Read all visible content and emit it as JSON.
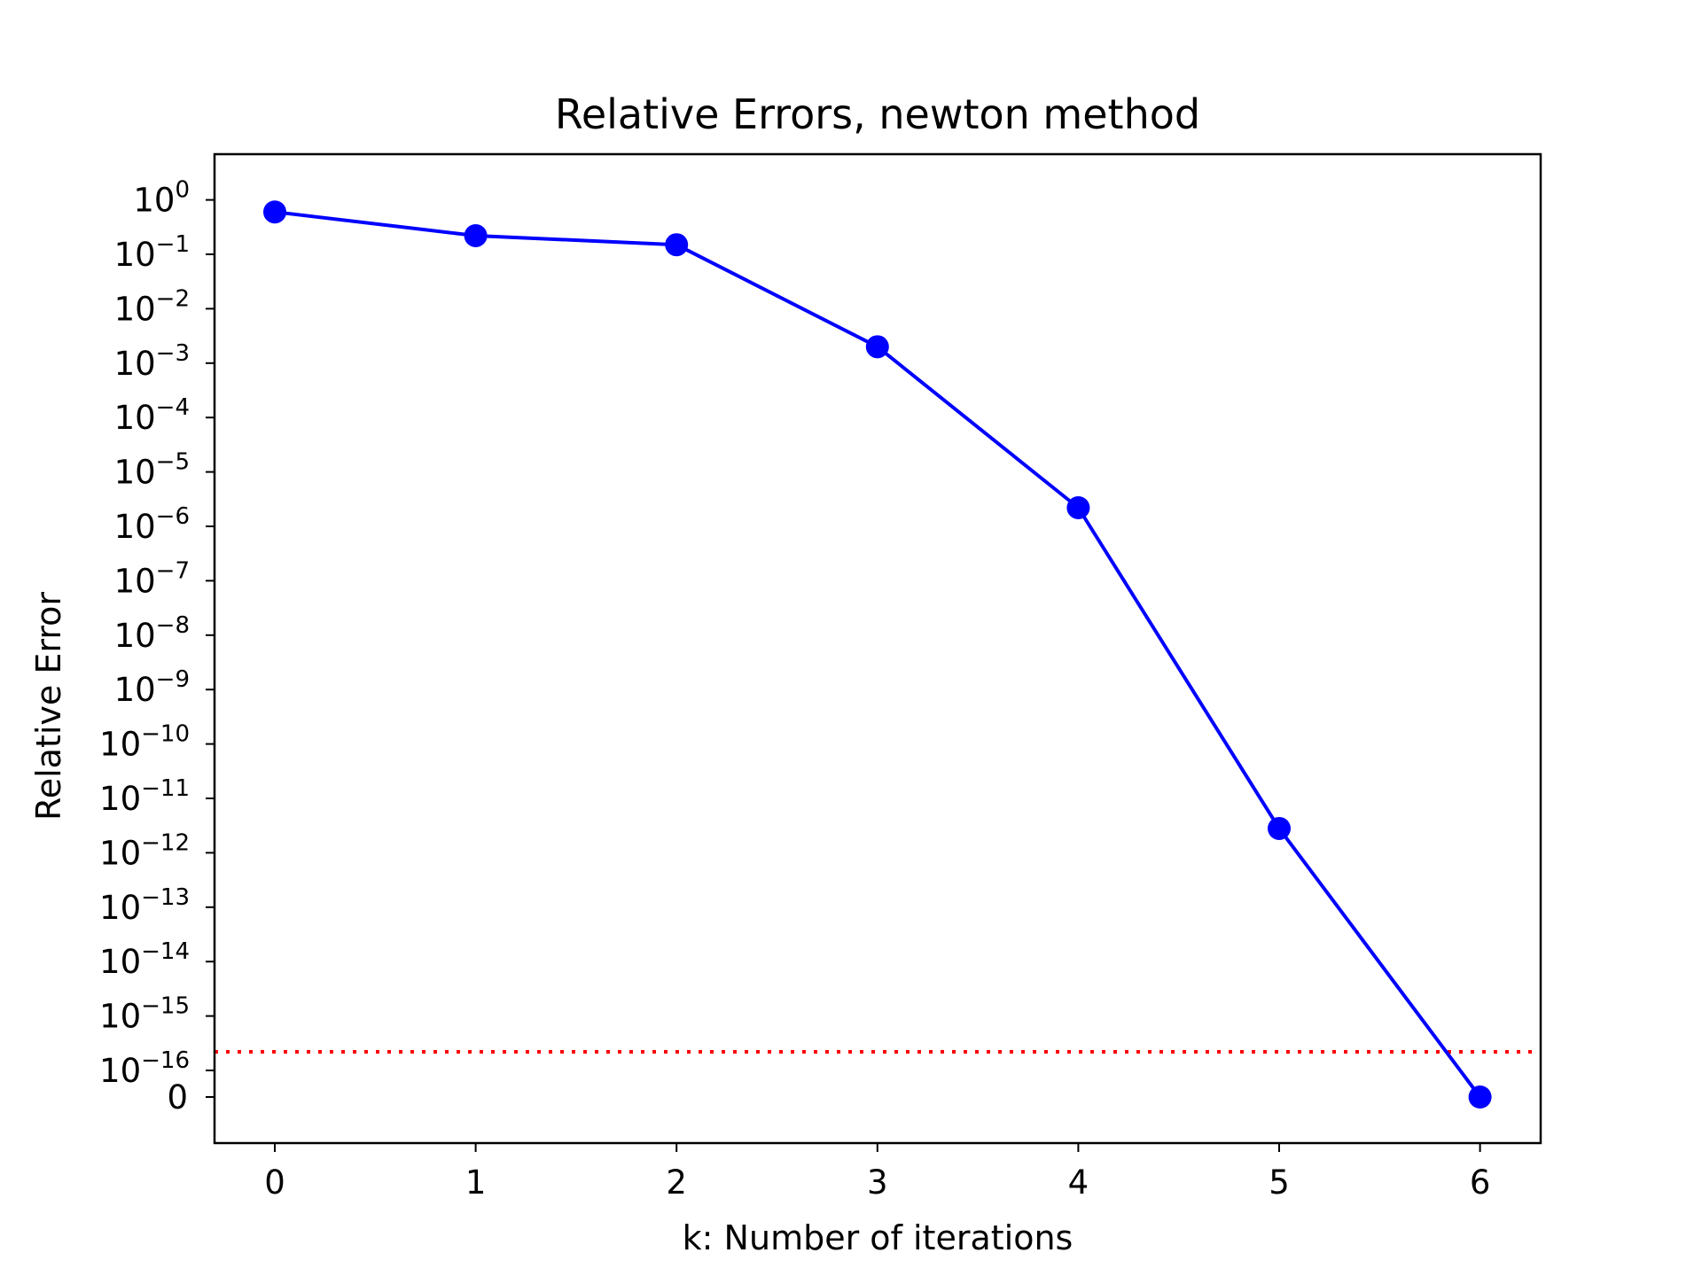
{
  "chart_data": {
    "type": "line",
    "title": "Relative Errors, newton method",
    "xlabel": "k: Number of iterations",
    "ylabel": "Relative Error",
    "x_ticks": [
      "0",
      "1",
      "2",
      "3",
      "4",
      "5",
      "6"
    ],
    "xlim": [
      -0.3,
      6.3
    ],
    "y_scale": "symlog",
    "y_linthresh": 1e-16,
    "y_ticks": [
      {
        "value": 0,
        "base": "0",
        "exp": ""
      },
      {
        "value": 1e-16,
        "base": "10",
        "exp": "−16"
      },
      {
        "value": 1e-15,
        "base": "10",
        "exp": "−15"
      },
      {
        "value": 1e-14,
        "base": "10",
        "exp": "−14"
      },
      {
        "value": 1e-13,
        "base": "10",
        "exp": "−13"
      },
      {
        "value": 1e-12,
        "base": "10",
        "exp": "−12"
      },
      {
        "value": 1e-11,
        "base": "10",
        "exp": "−11"
      },
      {
        "value": 1e-10,
        "base": "10",
        "exp": "−10"
      },
      {
        "value": 1e-09,
        "base": "10",
        "exp": "−9"
      },
      {
        "value": 1e-08,
        "base": "10",
        "exp": "−8"
      },
      {
        "value": 1e-07,
        "base": "10",
        "exp": "−7"
      },
      {
        "value": 1e-06,
        "base": "10",
        "exp": "−6"
      },
      {
        "value": 1e-05,
        "base": "10",
        "exp": "−5"
      },
      {
        "value": 0.0001,
        "base": "10",
        "exp": "−4"
      },
      {
        "value": 0.001,
        "base": "10",
        "exp": "−3"
      },
      {
        "value": 0.01,
        "base": "10",
        "exp": "−2"
      },
      {
        "value": 0.1,
        "base": "10",
        "exp": "−1"
      },
      {
        "value": 1,
        "base": "10",
        "exp": "0"
      }
    ],
    "series": [
      {
        "color": "#0000ff",
        "marker": "circle",
        "x": [
          0,
          1,
          2,
          3,
          4,
          5,
          6
        ],
        "y": [
          0.6,
          0.22,
          0.15,
          0.002,
          2.2e-06,
          2.8e-12,
          0
        ]
      }
    ],
    "reference_line": {
      "y": 2.2e-16,
      "color": "#ff0000",
      "style": "dotted"
    },
    "grid": false,
    "legend": "none"
  }
}
